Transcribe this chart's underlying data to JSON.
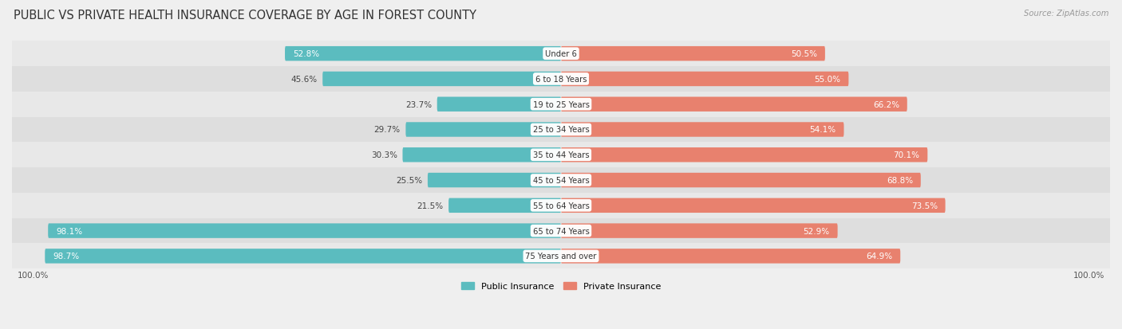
{
  "title": "PUBLIC VS PRIVATE HEALTH INSURANCE COVERAGE BY AGE IN FOREST COUNTY",
  "source": "Source: ZipAtlas.com",
  "categories": [
    "Under 6",
    "6 to 18 Years",
    "19 to 25 Years",
    "25 to 34 Years",
    "35 to 44 Years",
    "45 to 54 Years",
    "55 to 64 Years",
    "65 to 74 Years",
    "75 Years and over"
  ],
  "public_values": [
    52.8,
    45.6,
    23.7,
    29.7,
    30.3,
    25.5,
    21.5,
    98.1,
    98.7
  ],
  "private_values": [
    50.5,
    55.0,
    66.2,
    54.1,
    70.1,
    68.8,
    73.5,
    52.9,
    64.9
  ],
  "public_color": "#5bbcbf",
  "private_color": "#e8816e",
  "background_color": "#efefef",
  "row_bg_colors": [
    "#e8e8e8",
    "#dedede"
  ],
  "title_fontsize": 10.5,
  "label_fontsize": 7.5,
  "bar_height": 0.58,
  "max_value": 100.0
}
